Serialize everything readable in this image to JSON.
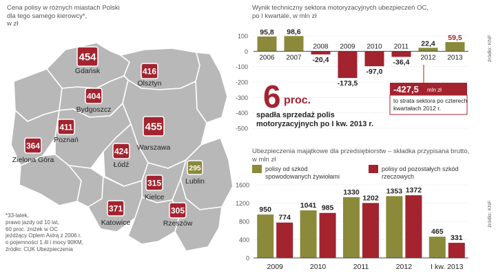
{
  "map": {
    "caption": "Cena polisy w różnych miastach Polski\ndla tego samego kierowcy*,\nw zł",
    "footnote": "*33-latek,\nprawo jazdy od 10 lat,\n60 proc. zniżek w OC\njeżdżący Oplem Astrą z 2006 r.\no pojemności 1.4l i mocy 90KM,\nźródło: CUK Ubezpieczenia",
    "cities": [
      {
        "name": "Gdańsk",
        "price": 454,
        "color": "#a3232f"
      },
      {
        "name": "Olsztyn",
        "price": 416,
        "color": "#a3232f"
      },
      {
        "name": "Bydgoszcz",
        "price": 404,
        "color": "#a3232f"
      },
      {
        "name": "Poznań",
        "price": 411,
        "color": "#a3232f"
      },
      {
        "name": "Warszawa",
        "price": 455,
        "color": "#a3232f"
      },
      {
        "name": "Zielona Góra",
        "price": 364,
        "color": "#a3232f"
      },
      {
        "name": "Łódź",
        "price": 424,
        "color": "#a3232f"
      },
      {
        "name": "Lublin",
        "price": 295,
        "color": "#8a8a3a"
      },
      {
        "name": "Kielce",
        "price": 315,
        "color": "#a3232f"
      },
      {
        "name": "Katowice",
        "price": 371,
        "color": "#a3232f"
      },
      {
        "name": "Rzeszów",
        "price": 305,
        "color": "#a3232f"
      }
    ]
  },
  "chart_data": [
    {
      "type": "bar",
      "title": "Wynik techniczny sektora motoryzacyjnych ubezpieczeń OC,\npo I kwartale, w mln zł",
      "categories": [
        "2006",
        "2007",
        "2008",
        "2009",
        "2010",
        "2011",
        "2012",
        "2013"
      ],
      "values": [
        95.8,
        98.6,
        -20.4,
        -173.5,
        -97.0,
        -36.4,
        22.4,
        59.5
      ],
      "labels": [
        "95,8",
        "98,6",
        "-20,4",
        "-173,5",
        "-97,0",
        "-36,4",
        "22,4",
        "59,5"
      ],
      "yticks": [
        "100",
        "0",
        "-100",
        "-200",
        "-300",
        "-400",
        "-500"
      ],
      "ylim": [
        -500,
        100
      ],
      "source": "źródło: KNF",
      "annotation_big": "6",
      "annotation_unit": "proc.",
      "annotation_text": "spadła sprzedaż polis\nmotoryzacyjnych po I kw. 2013 r.",
      "callout_value": "-427,5",
      "callout_unit": "mln zł",
      "callout_text": "to strata sektora po czterech\nkwartałach 2012 r."
    },
    {
      "type": "bar",
      "title": "Ubezpieczenia majątkowe dla przedsiębiorstw – składka przypisana brutto,\nw mln zł",
      "categories": [
        "2009",
        "2010",
        "2011",
        "2012",
        "I kw. 2013"
      ],
      "series": [
        {
          "name": "polisy od szkód spowodowanych żywiołami",
          "values": [
            950,
            1041,
            1330,
            1353,
            465
          ],
          "color": "#8a8a3a"
        },
        {
          "name": "polisy od pozostałych szkód rzeczowych",
          "values": [
            774,
            985,
            1202,
            1372,
            331
          ],
          "color": "#a3232f"
        }
      ],
      "legend": [
        "polisy od szkód\nspowodowanych żywiołami",
        "polisy od pozostałych szkód\nrzeczowych"
      ],
      "yticks": [
        "1600",
        "1200",
        "800",
        "400",
        "0"
      ],
      "ylim": [
        0,
        1600
      ],
      "source": "źródło: KNF"
    }
  ]
}
